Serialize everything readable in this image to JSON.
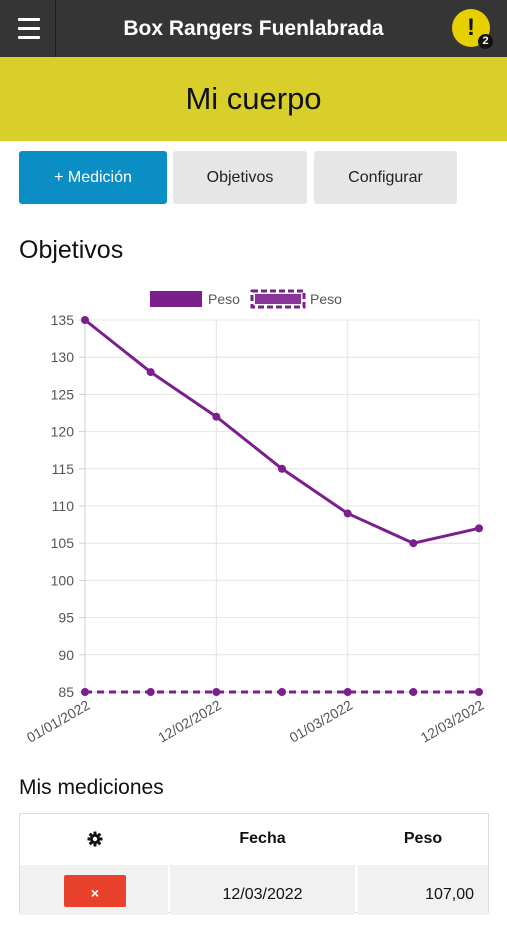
{
  "header": {
    "app_title": "Box Rangers Fuenlabrada",
    "alert_glyph": "!",
    "notification_count": "2",
    "menu_icon": "hamburger-icon",
    "alert_icon": "exclamation-icon"
  },
  "page": {
    "title": "Mi cuerpo"
  },
  "actions": {
    "add_measurement": "+ Medición",
    "goals": "Objetivos",
    "configure": "Configurar"
  },
  "goals_section": {
    "title": "Objetivos"
  },
  "chart_data": {
    "type": "line",
    "x": [
      "01/01/2022",
      "",
      "12/02/2022",
      "",
      "01/03/2022",
      "",
      "12/03/2022"
    ],
    "x_tick_labels": [
      "01/01/2022",
      "12/02/2022",
      "01/03/2022",
      "12/03/2022"
    ],
    "series": [
      {
        "name": "Peso",
        "style": "solid",
        "color": "#7a1f8c",
        "values": [
          135,
          128,
          122,
          115,
          109,
          105,
          107
        ]
      },
      {
        "name": "Peso",
        "style": "dashed",
        "color": "#7a1f8c",
        "values": [
          85,
          85,
          85,
          85,
          85,
          85,
          85
        ]
      }
    ],
    "ylim": [
      85,
      135
    ],
    "yticks": [
      85,
      90,
      95,
      100,
      105,
      110,
      115,
      120,
      125,
      130,
      135
    ],
    "grid": true,
    "legend": "top-center"
  },
  "measurements": {
    "title": "Mis mediciones",
    "settings_icon": "gear-icon",
    "columns": [
      "Fecha",
      "Peso"
    ],
    "rows": [
      {
        "delete_label": "×",
        "date": "12/03/2022",
        "weight": "107,00"
      }
    ]
  },
  "colors": {
    "topbar": "#353535",
    "hero": "#d8cf2b",
    "primary": "#0b8ec4",
    "series": "#7a1f8c",
    "delete": "#e8412c"
  }
}
